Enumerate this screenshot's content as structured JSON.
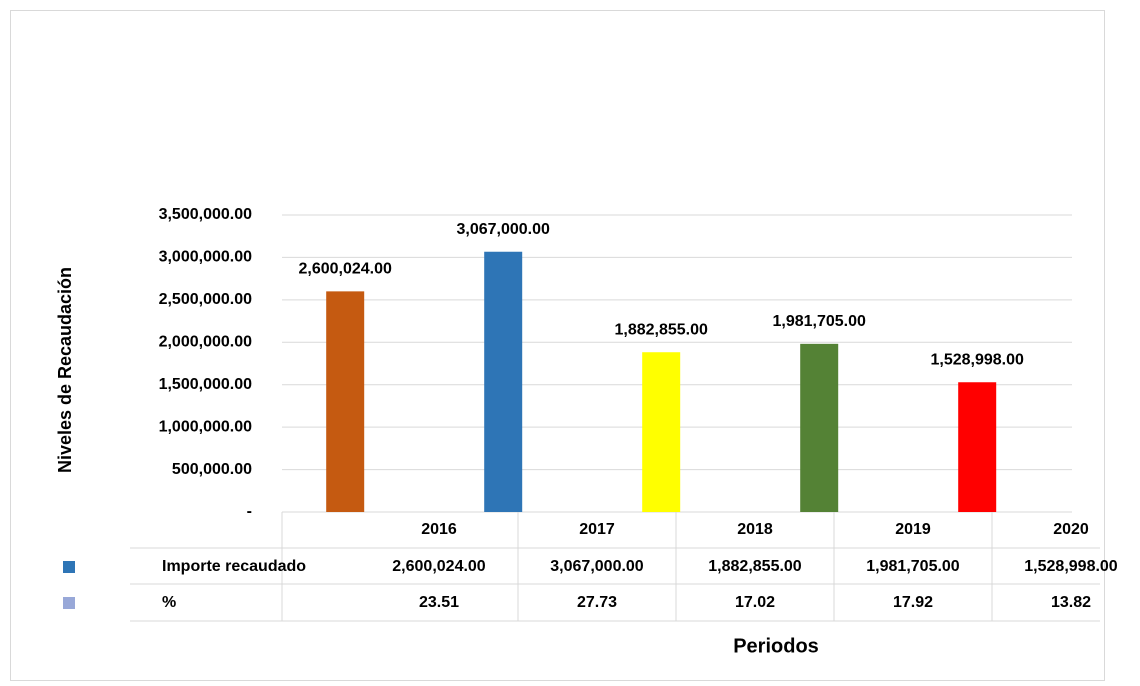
{
  "chart_data": {
    "type": "bar",
    "y_label": "Niveles de Recaudación",
    "x_label": "Periodos",
    "categories": [
      "2016",
      "2017",
      "2018",
      "2019",
      "2020"
    ],
    "series": [
      {
        "name": "Importe recaudado",
        "color": "#2e75b6",
        "bar_colors": [
          "#c55a11",
          "#2e75b6",
          "#ffff00",
          "#548235",
          "#ff0000"
        ],
        "values": [
          2600024,
          3067000,
          1882855,
          1981705,
          1528998
        ],
        "value_labels": [
          "2,600,024.00",
          "3,067,000.00",
          "1,882,855.00",
          "1,981,705.00",
          "1,528,998.00"
        ]
      },
      {
        "name": "%",
        "color": "#98a8d8",
        "values": [
          23.51,
          27.73,
          17.02,
          17.92,
          13.82
        ]
      }
    ],
    "ylim": [
      0,
      3500000
    ],
    "yticks": [
      {
        "value": 0,
        "label": "-"
      },
      {
        "value": 500000,
        "label": "500,000.00"
      },
      {
        "value": 1000000,
        "label": "1,000,000.00"
      },
      {
        "value": 1500000,
        "label": "1,500,000.00"
      },
      {
        "value": 2000000,
        "label": "2,000,000.00"
      },
      {
        "value": 2500000,
        "label": "2,500,000.00"
      },
      {
        "value": 3000000,
        "label": "3,000,000.00"
      },
      {
        "value": 3500000,
        "label": "3,500,000.00"
      }
    ],
    "grid": true
  }
}
